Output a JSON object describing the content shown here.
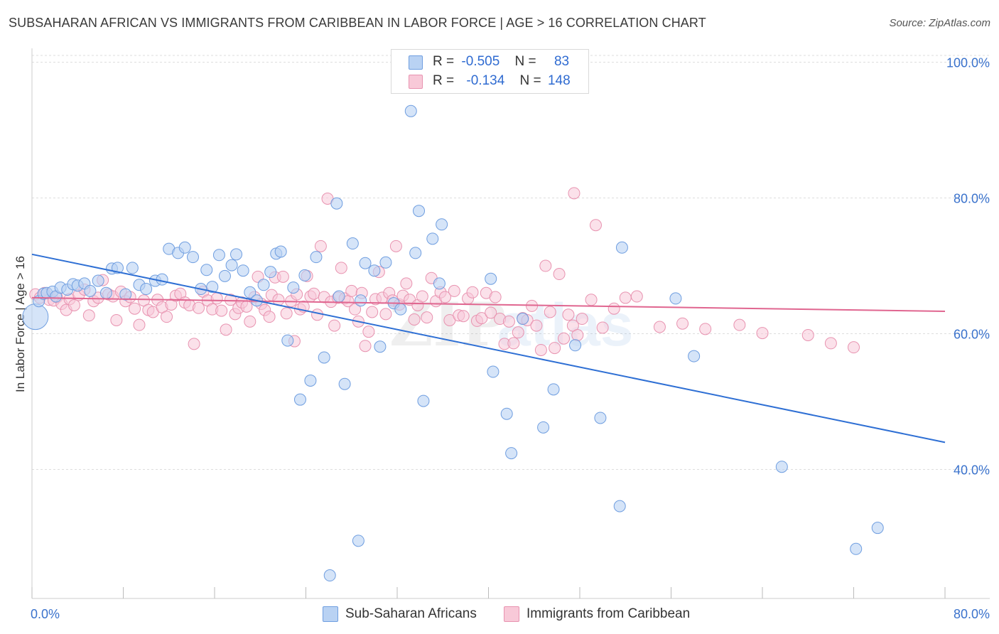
{
  "title": "SUBSAHARAN AFRICAN VS IMMIGRANTS FROM CARIBBEAN IN LABOR FORCE | AGE > 16 CORRELATION CHART",
  "source": "Source: ZipAtlas.com",
  "colors": {
    "blue_fill": "#b9d2f3",
    "blue_stroke": "#6f9ee0",
    "blue_line": "#2e6fd4",
    "pink_fill": "#f8c9d8",
    "pink_stroke": "#e893b0",
    "pink_line": "#e06690",
    "axis_text": "#3a72cc",
    "grid": "#dddddd"
  },
  "legend_top": {
    "rows": [
      {
        "r_label": "R =",
        "r_value": "-0.505",
        "n_label": "N =",
        "n_value": "83"
      },
      {
        "r_label": "R =",
        "r_value": "-0.134",
        "n_label": "N =",
        "n_value": "148"
      }
    ]
  },
  "chart_data": {
    "type": "scatter",
    "xlabel": "",
    "ylabel": "In Labor Force | Age > 16",
    "xlim": [
      0,
      80
    ],
    "ylim": [
      21,
      101
    ],
    "x_tick_labels": [
      "0.0%",
      "80.0%"
    ],
    "y_ticks": [
      40,
      60,
      80,
      100
    ],
    "y_tick_labels": [
      "40.0%",
      "60.0%",
      "80.0%",
      "100.0%"
    ],
    "grid": true,
    "legend_position": "bottom",
    "series": [
      {
        "name": "Sub-Saharan Africans",
        "color": "#6f9ee0",
        "regression": [
          [
            0,
            71.7
          ],
          [
            80,
            44.0
          ]
        ],
        "points": [
          [
            0.3,
            62.5
          ],
          [
            0.6,
            64.8
          ],
          [
            1.0,
            65.9
          ],
          [
            1.3,
            66.0
          ],
          [
            1.8,
            66.2
          ],
          [
            2.1,
            65.5
          ],
          [
            2.5,
            66.8
          ],
          [
            3.1,
            66.5
          ],
          [
            3.6,
            67.3
          ],
          [
            4.0,
            67.1
          ],
          [
            4.6,
            67.4
          ],
          [
            5.1,
            66.3
          ],
          [
            5.8,
            67.8
          ],
          [
            6.5,
            66.0
          ],
          [
            7.0,
            69.6
          ],
          [
            7.5,
            69.7
          ],
          [
            8.2,
            65.8
          ],
          [
            8.8,
            69.7
          ],
          [
            9.4,
            67.2
          ],
          [
            10.0,
            66.6
          ],
          [
            10.8,
            67.8
          ],
          [
            11.4,
            68.0
          ],
          [
            12.0,
            72.5
          ],
          [
            12.8,
            71.9
          ],
          [
            13.4,
            72.7
          ],
          [
            14.1,
            71.3
          ],
          [
            14.8,
            66.6
          ],
          [
            15.3,
            69.4
          ],
          [
            15.8,
            66.9
          ],
          [
            16.4,
            71.6
          ],
          [
            16.9,
            68.5
          ],
          [
            17.5,
            70.1
          ],
          [
            17.9,
            71.7
          ],
          [
            18.5,
            69.3
          ],
          [
            19.1,
            66.1
          ],
          [
            19.7,
            64.9
          ],
          [
            20.3,
            67.2
          ],
          [
            20.9,
            69.1
          ],
          [
            21.4,
            71.8
          ],
          [
            21.8,
            72.1
          ],
          [
            22.4,
            59.0
          ],
          [
            22.9,
            66.8
          ],
          [
            23.5,
            50.3
          ],
          [
            23.9,
            68.6
          ],
          [
            24.4,
            53.1
          ],
          [
            24.9,
            71.3
          ],
          [
            25.6,
            56.5
          ],
          [
            26.1,
            24.4
          ],
          [
            26.7,
            79.2
          ],
          [
            26.9,
            65.5
          ],
          [
            27.4,
            52.6
          ],
          [
            28.1,
            73.3
          ],
          [
            28.6,
            29.5
          ],
          [
            28.8,
            64.9
          ],
          [
            29.2,
            70.4
          ],
          [
            30.0,
            69.3
          ],
          [
            30.5,
            58.1
          ],
          [
            31.0,
            70.5
          ],
          [
            31.7,
            64.5
          ],
          [
            32.3,
            63.6
          ],
          [
            33.2,
            92.8
          ],
          [
            33.6,
            71.9
          ],
          [
            33.9,
            78.1
          ],
          [
            34.3,
            50.1
          ],
          [
            35.1,
            74.0
          ],
          [
            35.7,
            67.4
          ],
          [
            35.9,
            76.1
          ],
          [
            40.2,
            68.1
          ],
          [
            40.4,
            54.4
          ],
          [
            41.6,
            48.2
          ],
          [
            42.0,
            42.4
          ],
          [
            43.0,
            62.2
          ],
          [
            44.8,
            46.2
          ],
          [
            45.7,
            51.8
          ],
          [
            47.6,
            58.3
          ],
          [
            49.8,
            47.6
          ],
          [
            51.5,
            34.6
          ],
          [
            51.7,
            72.7
          ],
          [
            56.4,
            65.2
          ],
          [
            58.0,
            56.7
          ],
          [
            65.7,
            40.4
          ],
          [
            72.2,
            28.3
          ],
          [
            74.1,
            31.4
          ]
        ]
      },
      {
        "name": "Immigrants from Caribbean",
        "color": "#e893b0",
        "regression": [
          [
            0,
            65.3
          ],
          [
            80,
            63.3
          ]
        ],
        "points": [
          [
            0.3,
            65.8
          ],
          [
            0.7,
            65.3
          ],
          [
            1.1,
            66.0
          ],
          [
            1.5,
            65.0
          ],
          [
            1.9,
            64.9
          ],
          [
            2.2,
            65.4
          ],
          [
            2.6,
            64.4
          ],
          [
            3.0,
            63.5
          ],
          [
            3.3,
            65.1
          ],
          [
            3.7,
            64.2
          ],
          [
            4.1,
            65.7
          ],
          [
            4.6,
            66.5
          ],
          [
            5.0,
            62.7
          ],
          [
            5.4,
            64.8
          ],
          [
            5.8,
            65.3
          ],
          [
            6.2,
            67.9
          ],
          [
            6.7,
            65.8
          ],
          [
            7.1,
            65.5
          ],
          [
            7.4,
            62.0
          ],
          [
            7.8,
            66.2
          ],
          [
            8.2,
            64.8
          ],
          [
            8.6,
            65.4
          ],
          [
            9.0,
            63.7
          ],
          [
            9.4,
            61.3
          ],
          [
            9.8,
            64.9
          ],
          [
            10.2,
            63.5
          ],
          [
            10.6,
            63.2
          ],
          [
            11.0,
            65.0
          ],
          [
            11.4,
            63.9
          ],
          [
            11.8,
            62.5
          ],
          [
            12.2,
            64.3
          ],
          [
            12.6,
            65.6
          ],
          [
            13.0,
            65.9
          ],
          [
            13.4,
            64.6
          ],
          [
            13.8,
            64.2
          ],
          [
            14.2,
            58.5
          ],
          [
            14.6,
            63.8
          ],
          [
            15.0,
            66.2
          ],
          [
            15.4,
            64.9
          ],
          [
            15.8,
            63.6
          ],
          [
            16.2,
            65.2
          ],
          [
            16.6,
            63.4
          ],
          [
            17.0,
            60.6
          ],
          [
            17.4,
            65.0
          ],
          [
            17.8,
            62.9
          ],
          [
            18.1,
            63.8
          ],
          [
            18.4,
            64.6
          ],
          [
            18.8,
            64.0
          ],
          [
            19.1,
            61.8
          ],
          [
            19.5,
            65.4
          ],
          [
            19.8,
            68.4
          ],
          [
            20.1,
            64.4
          ],
          [
            20.4,
            63.5
          ],
          [
            20.8,
            62.5
          ],
          [
            21.0,
            65.7
          ],
          [
            21.3,
            68.3
          ],
          [
            21.6,
            65.0
          ],
          [
            22.0,
            68.4
          ],
          [
            22.3,
            63.0
          ],
          [
            22.7,
            64.8
          ],
          [
            23.0,
            58.9
          ],
          [
            23.2,
            65.8
          ],
          [
            23.5,
            63.6
          ],
          [
            23.8,
            64.0
          ],
          [
            24.1,
            68.5
          ],
          [
            24.4,
            65.5
          ],
          [
            24.7,
            65.9
          ],
          [
            25.0,
            62.8
          ],
          [
            25.3,
            72.9
          ],
          [
            25.6,
            65.4
          ],
          [
            25.9,
            79.9
          ],
          [
            26.2,
            64.7
          ],
          [
            26.5,
            61.2
          ],
          [
            26.8,
            65.3
          ],
          [
            27.1,
            69.7
          ],
          [
            27.4,
            65.2
          ],
          [
            27.7,
            64.8
          ],
          [
            28.0,
            66.3
          ],
          [
            28.3,
            63.6
          ],
          [
            28.6,
            61.8
          ],
          [
            28.9,
            66.0
          ],
          [
            29.2,
            58.2
          ],
          [
            29.5,
            60.3
          ],
          [
            29.8,
            63.2
          ],
          [
            30.1,
            65.1
          ],
          [
            30.4,
            69.1
          ],
          [
            30.7,
            65.3
          ],
          [
            31.0,
            62.9
          ],
          [
            31.3,
            66.0
          ],
          [
            31.6,
            64.9
          ],
          [
            31.9,
            72.9
          ],
          [
            32.2,
            64.3
          ],
          [
            32.5,
            65.6
          ],
          [
            32.8,
            67.4
          ],
          [
            33.1,
            65.0
          ],
          [
            33.5,
            62.1
          ],
          [
            33.8,
            64.2
          ],
          [
            34.2,
            65.5
          ],
          [
            34.6,
            62.4
          ],
          [
            35.0,
            68.2
          ],
          [
            35.4,
            64.8
          ],
          [
            35.8,
            66.1
          ],
          [
            36.2,
            65.4
          ],
          [
            36.6,
            62.0
          ],
          [
            37.0,
            66.3
          ],
          [
            37.4,
            62.7
          ],
          [
            37.8,
            62.6
          ],
          [
            38.2,
            65.2
          ],
          [
            38.6,
            66.1
          ],
          [
            39.0,
            61.9
          ],
          [
            39.4,
            62.3
          ],
          [
            39.8,
            66.0
          ],
          [
            40.2,
            63.1
          ],
          [
            40.6,
            65.4
          ],
          [
            41.0,
            62.2
          ],
          [
            41.4,
            58.5
          ],
          [
            41.8,
            61.8
          ],
          [
            42.2,
            58.6
          ],
          [
            42.6,
            60.2
          ],
          [
            43.0,
            62.3
          ],
          [
            43.4,
            62.0
          ],
          [
            43.8,
            64.1
          ],
          [
            44.2,
            61.2
          ],
          [
            44.6,
            57.6
          ],
          [
            45.0,
            70.0
          ],
          [
            45.4,
            63.2
          ],
          [
            45.8,
            57.9
          ],
          [
            46.2,
            68.8
          ],
          [
            46.6,
            59.3
          ],
          [
            47.0,
            62.8
          ],
          [
            47.4,
            61.2
          ],
          [
            47.8,
            59.8
          ],
          [
            48.2,
            62.2
          ],
          [
            49.0,
            65.0
          ],
          [
            49.4,
            76.0
          ],
          [
            50.0,
            60.9
          ],
          [
            51.0,
            63.7
          ],
          [
            52.0,
            65.3
          ],
          [
            53.0,
            65.5
          ],
          [
            55.0,
            61.0
          ],
          [
            57.0,
            61.5
          ],
          [
            59.0,
            60.7
          ],
          [
            62.0,
            61.3
          ],
          [
            64.0,
            60.1
          ],
          [
            68.0,
            59.8
          ],
          [
            70.0,
            58.6
          ],
          [
            72.0,
            58.0
          ],
          [
            47.5,
            80.7
          ]
        ]
      }
    ]
  },
  "bottom_legend": [
    {
      "label": "Sub-Saharan Africans"
    },
    {
      "label": "Immigrants from Caribbean"
    }
  ],
  "watermark": {
    "text_a": "ZIP",
    "text_b": "atlas"
  }
}
